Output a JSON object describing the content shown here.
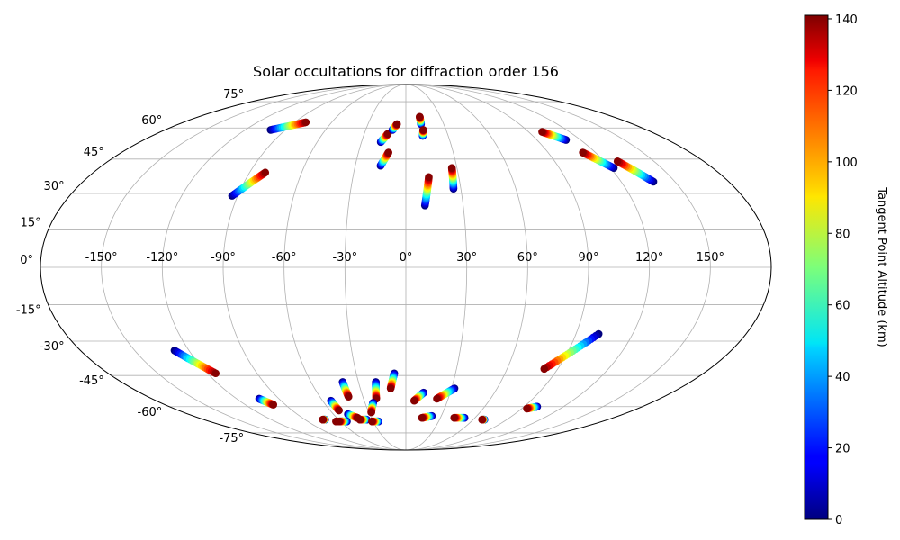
{
  "chart_data": {
    "type": "scatter",
    "projection": "mollweide",
    "title": "Solar occultations for diffraction order 156",
    "grid": true,
    "lon_ticks": [
      -150,
      -120,
      -90,
      -60,
      -30,
      0,
      30,
      60,
      90,
      120,
      150
    ],
    "lon_tick_labels": [
      "-150°",
      "-120°",
      "-90°",
      "-60°",
      "-30°",
      "0°",
      "30°",
      "60°",
      "90°",
      "120°",
      "150°"
    ],
    "lat_ticks": [
      75,
      60,
      45,
      30,
      15,
      0,
      -15,
      -30,
      -45,
      -60,
      -75
    ],
    "lat_tick_labels": [
      "75°",
      "60°",
      "45°",
      "30°",
      "15°",
      "0°",
      "-15°",
      "-30°",
      "-45°",
      "-60°",
      "-75°"
    ],
    "colorbar": {
      "label": "Tangent Point Altitude (km)",
      "colormap": "jet",
      "range": [
        0,
        141
      ],
      "ticks": [
        0,
        20,
        40,
        60,
        80,
        100,
        120,
        140
      ],
      "tick_labels": [
        "0",
        "20",
        "40",
        "60",
        "80",
        "100",
        "120",
        "140"
      ]
    },
    "series": [
      {
        "lon": [
          -101,
          -81
        ],
        "lat": [
          59,
          63
        ],
        "alt": [
          0,
          140
        ]
      },
      {
        "lon": [
          -93,
          -81
        ],
        "lat": [
          29,
          39
        ],
        "alt": [
          0,
          140
        ]
      },
      {
        "lon": [
          -17,
          -13
        ],
        "lat": [
          53,
          57
        ],
        "alt": [
          0,
          140
        ]
      },
      {
        "lon": [
          -10,
          -7
        ],
        "lat": [
          59,
          62
        ],
        "alt": [
          0,
          140
        ]
      },
      {
        "lon": [
          -15,
          -11
        ],
        "lat": [
          42,
          48
        ],
        "alt": [
          0,
          140
        ]
      },
      {
        "lon": [
          12,
          12
        ],
        "lat": [
          62,
          66
        ],
        "alt": [
          0,
          140
        ]
      },
      {
        "lon": [
          12,
          13
        ],
        "lat": [
          56,
          59
        ],
        "alt": [
          0,
          140
        ]
      },
      {
        "lon": [
          10,
          13
        ],
        "lat": [
          25,
          37
        ],
        "alt": [
          0,
          140
        ]
      },
      {
        "lon": [
          26,
          27
        ],
        "lat": [
          32,
          41
        ],
        "alt": [
          0,
          140
        ]
      },
      {
        "lon": [
          110,
          100
        ],
        "lat": [
          54,
          58
        ],
        "alt": [
          0,
          140
        ]
      },
      {
        "lon": [
          122,
          112
        ],
        "lat": [
          41,
          48
        ],
        "alt": [
          0,
          140
        ]
      },
      {
        "lon": [
          138,
          128
        ],
        "lat": [
          35,
          44
        ],
        "alt": [
          0,
          140
        ]
      },
      {
        "lon": [
          -128,
          -115
        ],
        "lat": [
          -34,
          -44
        ],
        "alt": [
          0,
          140
        ]
      },
      {
        "lon": [
          -104,
          -99
        ],
        "lat": [
          -56,
          -59
        ],
        "alt": [
          0,
          140
        ]
      },
      {
        "lon": [
          102,
          82
        ],
        "lat": [
          -27,
          -42
        ],
        "alt": [
          0,
          140
        ]
      },
      {
        "lon": [
          -54,
          -53
        ],
        "lat": [
          -57,
          -62
        ],
        "alt": [
          0,
          140
        ]
      },
      {
        "lon": [
          -40,
          -40
        ],
        "lat": [
          -48,
          -55
        ],
        "alt": [
          0,
          140
        ]
      },
      {
        "lon": [
          -19,
          -21
        ],
        "lat": [
          -48,
          -56
        ],
        "alt": [
          0,
          140
        ]
      },
      {
        "lon": [
          -7,
          -10
        ],
        "lat": [
          -44,
          -51
        ],
        "alt": [
          0,
          140
        ]
      },
      {
        "lon": [
          12,
          6
        ],
        "lat": [
          -53,
          -57
        ],
        "alt": [
          0,
          140
        ]
      },
      {
        "lon": [
          32,
          22
        ],
        "lat": [
          -51,
          -56
        ],
        "alt": [
          0,
          140
        ]
      },
      {
        "lon": [
          -24,
          -28
        ],
        "lat": [
          -58,
          -63
        ],
        "alt": [
          0,
          140
        ]
      },
      {
        "lon": [
          -48,
          -42
        ],
        "lat": [
          -64,
          -66
        ],
        "alt": [
          0,
          140
        ]
      },
      {
        "lon": [
          -72,
          -74
        ],
        "lat": [
          -67,
          -67
        ],
        "alt": [
          0,
          140
        ]
      },
      {
        "lon": [
          -58,
          -64
        ],
        "lat": [
          -68,
          -68
        ],
        "alt": [
          0,
          140
        ]
      },
      {
        "lon": [
          -54,
          -61
        ],
        "lat": [
          -68,
          -68
        ],
        "alt": [
          0,
          140
        ]
      },
      {
        "lon": [
          -35,
          -41
        ],
        "lat": [
          -67,
          -67
        ],
        "alt": [
          0,
          140
        ]
      },
      {
        "lon": [
          -25,
          -31
        ],
        "lat": [
          -68,
          -68
        ],
        "alt": [
          0,
          140
        ]
      },
      {
        "lon": [
          22,
          14
        ],
        "lat": [
          -65,
          -66
        ],
        "alt": [
          0,
          140
        ]
      },
      {
        "lon": [
          51,
          42
        ],
        "lat": [
          -66,
          -66
        ],
        "alt": [
          0,
          140
        ]
      },
      {
        "lon": [
          70,
          68
        ],
        "lat": [
          -67,
          -67
        ],
        "alt": [
          0,
          140
        ]
      },
      {
        "lon": [
          100,
          94
        ],
        "lat": [
          -60,
          -61
        ],
        "alt": [
          0,
          140
        ]
      }
    ]
  }
}
